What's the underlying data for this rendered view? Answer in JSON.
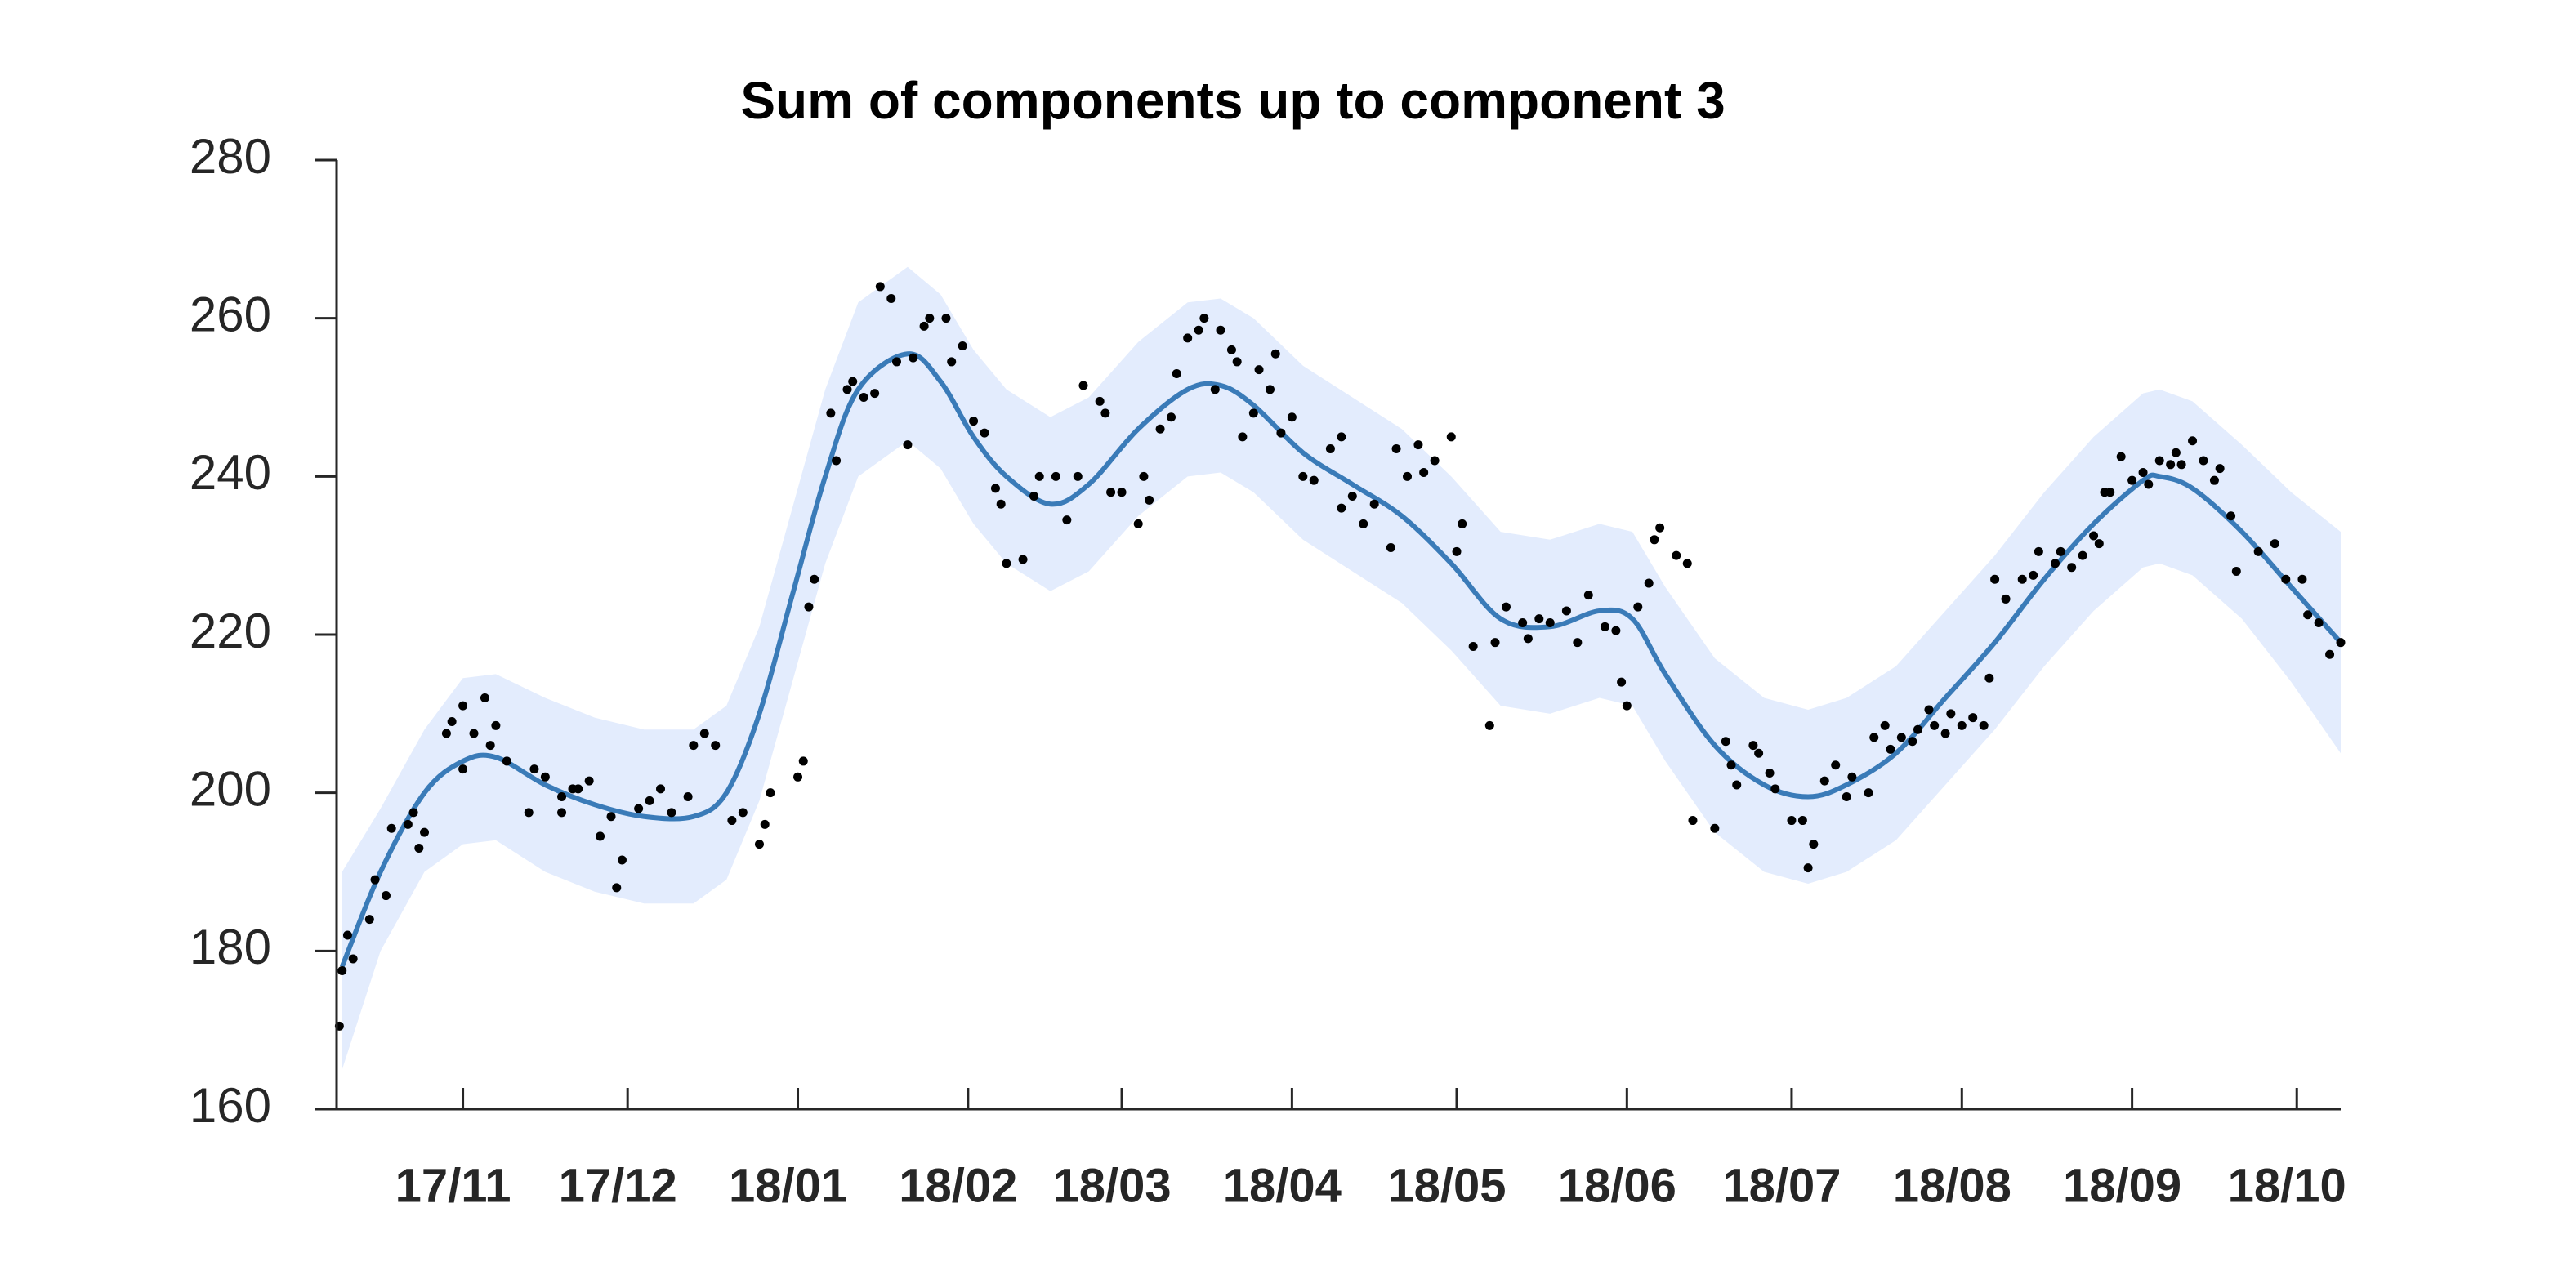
{
  "chart_data": {
    "type": "line",
    "title": "Sum of components up to component 3",
    "color": "#3a7bb8",
    "band_color": "#e3ecfd",
    "point_color": "#000000",
    "xlim": [
      -23,
      342
    ],
    "ylim": [
      160,
      280
    ],
    "yticks": [
      160,
      180,
      200,
      220,
      240,
      260,
      280
    ],
    "xticks": [
      {
        "value": 0,
        "label": "17/11"
      },
      {
        "value": 30,
        "label": "17/12"
      },
      {
        "value": 61,
        "label": "18/01"
      },
      {
        "value": 92,
        "label": "18/02"
      },
      {
        "value": 120,
        "label": "18/03"
      },
      {
        "value": 151,
        "label": "18/04"
      },
      {
        "value": 181,
        "label": "18/05"
      },
      {
        "value": 212,
        "label": "18/06"
      },
      {
        "value": 242,
        "label": "18/07"
      },
      {
        "value": 273,
        "label": "18/08"
      },
      {
        "value": 304,
        "label": "18/09"
      },
      {
        "value": 334,
        "label": "18/10"
      }
    ],
    "x": [
      -22,
      -15,
      -7,
      0,
      6,
      15,
      24,
      33,
      42,
      48,
      54,
      60,
      66,
      72,
      81,
      87,
      93,
      99,
      107,
      114,
      123,
      132,
      138,
      144,
      153,
      162,
      171,
      180,
      189,
      198,
      207,
      213,
      219,
      228,
      237,
      245,
      252,
      261,
      270,
      279,
      288,
      297,
      306,
      309,
      315,
      324,
      333,
      342
    ],
    "values": [
      178,
      190,
      200,
      204,
      204.5,
      201,
      198.5,
      197,
      197,
      200,
      210,
      225,
      240,
      251,
      255.5,
      252,
      245,
      240,
      236.5,
      239,
      246,
      251,
      251.5,
      249,
      243,
      239,
      235,
      229,
      222,
      221,
      223,
      222,
      215,
      206,
      201,
      199.5,
      201,
      205,
      212,
      219,
      227,
      234,
      239.5,
      240,
      238.5,
      233,
      226,
      219
    ],
    "band_upper": [
      190,
      198,
      208,
      214.5,
      215,
      212,
      209.5,
      208,
      208,
      211,
      221,
      236,
      251,
      262,
      266.5,
      263,
      256,
      251,
      247.5,
      250,
      257,
      262,
      262.5,
      260,
      254,
      250,
      246,
      240,
      233,
      232,
      234,
      233,
      226,
      217,
      212,
      210.5,
      212,
      216,
      223,
      230,
      238,
      245,
      250.5,
      251,
      249.5,
      244,
      238,
      233
    ],
    "band_lower": [
      165,
      180,
      190,
      193.5,
      194,
      190,
      187.5,
      186,
      186,
      189,
      199,
      214,
      229,
      240,
      244.5,
      241,
      234,
      229,
      225.5,
      228,
      235,
      240,
      240.5,
      238,
      232,
      228,
      224,
      218,
      211,
      210,
      212,
      211,
      204,
      195,
      190,
      188.5,
      190,
      194,
      201,
      208,
      216,
      223,
      228.5,
      229,
      227.5,
      222,
      214,
      205
    ],
    "points": {
      "x": [
        -22.5,
        -22,
        -21,
        -20,
        -17,
        -16,
        -14,
        -13,
        -10,
        -9,
        -8,
        -7,
        -3,
        -2,
        0,
        2,
        0,
        4,
        5,
        6,
        8,
        12,
        13,
        15,
        18,
        18,
        20,
        21,
        23,
        25,
        27,
        28,
        29,
        32,
        34,
        36,
        38,
        41,
        42,
        44,
        46,
        49,
        51,
        54,
        55,
        56,
        61,
        62,
        63,
        64,
        67,
        68,
        70,
        71,
        73,
        75,
        76,
        78,
        79,
        81,
        82,
        84,
        85,
        88,
        89,
        91,
        93,
        95,
        97,
        98,
        99,
        102,
        104,
        105,
        108,
        110,
        112,
        113,
        116,
        117,
        118,
        120,
        123,
        124,
        125,
        127,
        129,
        130,
        132,
        134,
        135,
        137,
        138,
        140,
        141,
        142,
        144,
        145,
        147,
        148,
        149,
        151,
        153,
        155,
        158,
        160,
        160,
        162,
        164,
        166,
        169,
        170,
        172,
        174,
        175,
        177,
        180,
        181,
        182,
        184,
        187,
        188,
        190,
        193,
        194,
        196,
        198,
        201,
        203,
        205,
        208,
        210,
        211,
        212,
        214,
        216,
        217,
        218,
        221,
        223,
        224,
        228,
        230,
        231,
        232,
        235,
        236,
        238,
        239,
        242,
        244,
        245,
        246,
        248,
        250,
        252,
        253,
        256,
        257,
        259,
        260,
        262,
        264,
        265,
        267,
        268,
        270,
        271,
        273,
        275,
        277,
        278,
        279,
        281,
        284,
        286,
        287,
        290,
        291,
        293,
        295,
        297,
        298,
        299,
        300,
        302,
        304,
        306,
        307,
        309,
        311,
        312,
        313,
        315,
        317,
        319,
        320,
        322,
        323,
        327,
        330,
        332,
        335,
        336,
        338,
        340,
        342
      ],
      "y": [
        170.5,
        177.5,
        182,
        179,
        184,
        189,
        187,
        195.5,
        196,
        197.5,
        193,
        195,
        207.5,
        209,
        211,
        207.5,
        203,
        212,
        206,
        208.5,
        204,
        197.5,
        203,
        202,
        199.5,
        197.5,
        200.5,
        200.5,
        201.5,
        194.5,
        197,
        188,
        191.5,
        198,
        199,
        200.5,
        197.5,
        199.5,
        206,
        207.5,
        206,
        196.5,
        197.5,
        193.5,
        196,
        200,
        202,
        204,
        223.5,
        227,
        248,
        242,
        251,
        252,
        250,
        250.5,
        264,
        262.5,
        254.5,
        244,
        255,
        259,
        260,
        260,
        254.5,
        256.5,
        247,
        245.5,
        238.5,
        236.5,
        229,
        229.5,
        237.5,
        240,
        240,
        234.5,
        240,
        251.5,
        249.5,
        248,
        238,
        238,
        234,
        240,
        237,
        246,
        247.5,
        253,
        257.5,
        258.5,
        260,
        251,
        258.5,
        256,
        254.5,
        245,
        248,
        253.5,
        251,
        255.5,
        245.5,
        247.5,
        240,
        239.5,
        243.5,
        245,
        236,
        237.5,
        234,
        236.5,
        231,
        243.5,
        240,
        244,
        240.5,
        242,
        245,
        230.5,
        234,
        218.5,
        208.5,
        219,
        223.5,
        221.5,
        219.5,
        222,
        221.5,
        223,
        219,
        225,
        221,
        220.5,
        214,
        211,
        223.5,
        226.5,
        232,
        233.5,
        230,
        229,
        196.5,
        195.5,
        206.5,
        203.5,
        201,
        206,
        205,
        202.5,
        200.5,
        196.5,
        196.5,
        190.5,
        193.5,
        201.5,
        203.5,
        199.5,
        202,
        200,
        207,
        208.5,
        205.5,
        207,
        206.5,
        208,
        210.5,
        208.5,
        207.5,
        210,
        208.5,
        209.5,
        208.5,
        214.5,
        227,
        224.5,
        227,
        227.5,
        230.5,
        229,
        230.5,
        228.5,
        230,
        232.5,
        231.5,
        238,
        238,
        242.5,
        239.5,
        240.5,
        239,
        242,
        241.5,
        243,
        241.5,
        244.5,
        242,
        239.5,
        241,
        235,
        228,
        230.5,
        231.5,
        227,
        227,
        222.5,
        221.5,
        217.5,
        219
      ]
    }
  }
}
